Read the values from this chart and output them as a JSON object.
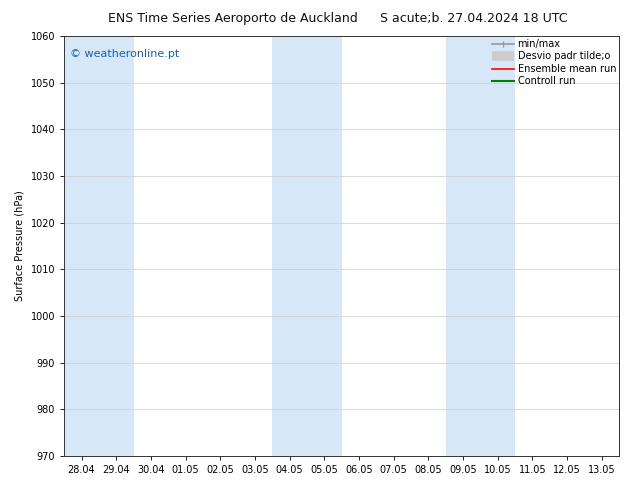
{
  "title_left": "ENS Time Series Aeroporto de Auckland",
  "title_right": "S acute;b. 27.04.2024 18 UTC",
  "ylabel": "Surface Pressure (hPa)",
  "ylim": [
    970,
    1060
  ],
  "yticks": [
    970,
    980,
    990,
    1000,
    1010,
    1020,
    1030,
    1040,
    1050,
    1060
  ],
  "x_labels": [
    "28.04",
    "29.04",
    "30.04",
    "01.05",
    "02.05",
    "03.05",
    "04.05",
    "05.05",
    "06.05",
    "07.05",
    "08.05",
    "09.05",
    "10.05",
    "11.05",
    "12.05",
    "13.05"
  ],
  "shaded_indices": [
    0,
    1,
    6,
    7,
    11,
    12
  ],
  "shaded_color": "#d6e8f7",
  "background_color": "#ffffff",
  "watermark": "© weatheronline.pt",
  "watermark_color": "#1560bd",
  "legend_labels": [
    "min/max",
    "Desvio padr tilde;o",
    "Ensemble mean run",
    "Controll run"
  ],
  "legend_colors": [
    "#999999",
    "#cccccc",
    "#ff0000",
    "#008000"
  ],
  "title_fontsize": 9,
  "axis_label_fontsize": 7,
  "tick_fontsize": 7,
  "watermark_fontsize": 8,
  "legend_fontsize": 7
}
